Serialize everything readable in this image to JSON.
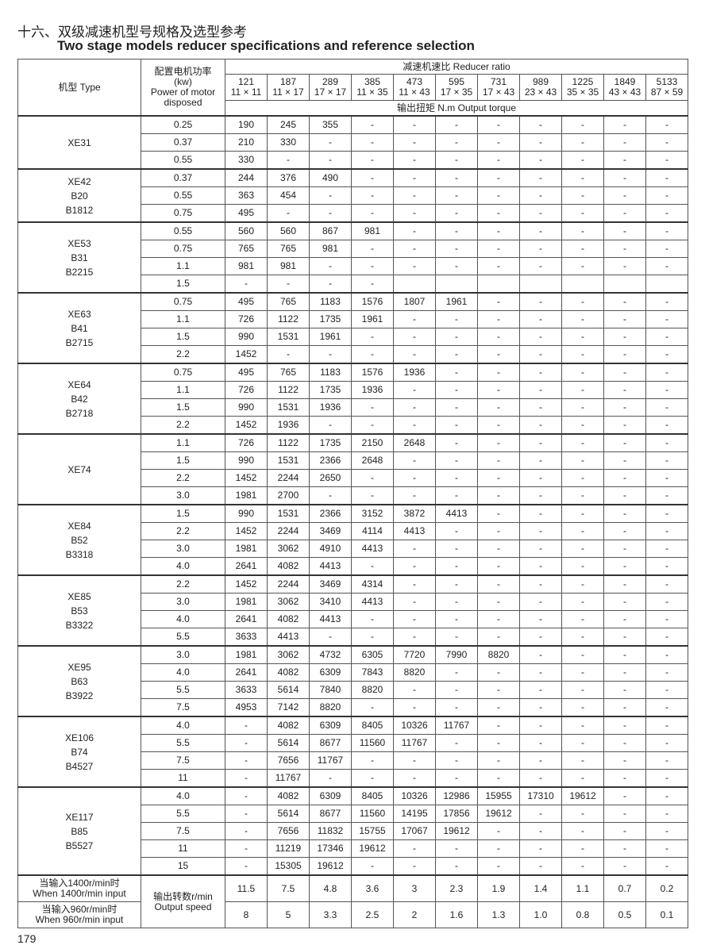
{
  "title_cn": "十六、双级减速机型号规格及选型参考",
  "title_en": "Two stage models reducer specifications and reference selection",
  "header": {
    "type": "机型 Type",
    "power": [
      "配置电机功率",
      "(kw)",
      "Power of motor",
      "disposed"
    ],
    "ratio_title": "减速机速比 Reducer ratio",
    "ratios": [
      [
        "121",
        "11 × 11"
      ],
      [
        "187",
        "11 × 17"
      ],
      [
        "289",
        "17 × 17"
      ],
      [
        "385",
        "11 × 35"
      ],
      [
        "473",
        "11 × 43"
      ],
      [
        "595",
        "17 × 35"
      ],
      [
        "731",
        "17 × 43"
      ],
      [
        "989",
        "23 × 43"
      ],
      [
        "1225",
        "35 × 35"
      ],
      [
        "1849",
        "43 × 43"
      ],
      [
        "5133",
        "87 × 59"
      ]
    ],
    "torque": "输出扭矩 N.m Output torque"
  },
  "groups": [
    {
      "models": [
        "XE31"
      ],
      "rows": [
        [
          "0.25",
          [
            "190",
            "245",
            "355",
            "-",
            "-",
            "-",
            "-",
            "-",
            "-",
            "-",
            "-"
          ]
        ],
        [
          "0.37",
          [
            "210",
            "330",
            "-",
            "-",
            "-",
            "-",
            "-",
            "-",
            "-",
            "-",
            "-"
          ]
        ],
        [
          "0.55",
          [
            "330",
            "-",
            "-",
            "-",
            "-",
            "-",
            "-",
            "-",
            "-",
            "-",
            "-"
          ]
        ]
      ]
    },
    {
      "models": [
        "XE42",
        "B20",
        "B1812"
      ],
      "rows": [
        [
          "0.37",
          [
            "244",
            "376",
            "490",
            "-",
            "-",
            "-",
            "-",
            "-",
            "-",
            "-",
            "-"
          ]
        ],
        [
          "0.55",
          [
            "363",
            "454",
            "-",
            "-",
            "-",
            "-",
            "-",
            "-",
            "-",
            "-",
            "-"
          ]
        ],
        [
          "0.75",
          [
            "495",
            "-",
            "-",
            "-",
            "-",
            "-",
            "-",
            "-",
            "-",
            "-",
            "-"
          ]
        ]
      ]
    },
    {
      "models": [
        "XE53",
        "B31",
        "B2215"
      ],
      "rows": [
        [
          "0.55",
          [
            "560",
            "560",
            "867",
            "981",
            "-",
            "-",
            "-",
            "-",
            "-",
            "-",
            "-"
          ]
        ],
        [
          "0.75",
          [
            "765",
            "765",
            "981",
            "-",
            "-",
            "-",
            "-",
            "-",
            "-",
            "-",
            "-"
          ]
        ],
        [
          "1.1",
          [
            "981",
            "981",
            "-",
            "-",
            "-",
            "-",
            "-",
            "-",
            "-",
            "-",
            "-"
          ]
        ],
        [
          "1.5",
          [
            "-",
            "-",
            "-",
            "-",
            "",
            "",
            "",
            "",
            "",
            "",
            ""
          ]
        ]
      ]
    },
    {
      "models": [
        "XE63",
        "B41",
        "B2715"
      ],
      "rows": [
        [
          "0.75",
          [
            "495",
            "765",
            "1183",
            "1576",
            "1807",
            "1961",
            "-",
            "-",
            "-",
            "-",
            "-"
          ]
        ],
        [
          "1.1",
          [
            "726",
            "1122",
            "1735",
            "1961",
            "-",
            "-",
            "-",
            "-",
            "-",
            "-",
            "-"
          ]
        ],
        [
          "1.5",
          [
            "990",
            "1531",
            "1961",
            "-",
            "-",
            "-",
            "-",
            "-",
            "-",
            "-",
            "-"
          ]
        ],
        [
          "2.2",
          [
            "1452",
            "-",
            "-",
            "-",
            "-",
            "-",
            "-",
            "-",
            "-",
            "-",
            "-"
          ]
        ]
      ]
    },
    {
      "models": [
        "XE64",
        "B42",
        "B2718"
      ],
      "rows": [
        [
          "0.75",
          [
            "495",
            "765",
            "1183",
            "1576",
            "1936",
            "-",
            "-",
            "-",
            "-",
            "-",
            "-"
          ]
        ],
        [
          "1.1",
          [
            "726",
            "1122",
            "1735",
            "1936",
            "-",
            "-",
            "-",
            "-",
            "-",
            "-",
            "-"
          ]
        ],
        [
          "1.5",
          [
            "990",
            "1531",
            "1936",
            "-",
            "-",
            "-",
            "-",
            "-",
            "-",
            "-",
            "-"
          ]
        ],
        [
          "2.2",
          [
            "1452",
            "1936",
            "-",
            "-",
            "-",
            "-",
            "-",
            "-",
            "-",
            "-",
            "-"
          ]
        ]
      ]
    },
    {
      "models": [
        "XE74"
      ],
      "rows": [
        [
          "1.1",
          [
            "726",
            "1122",
            "1735",
            "2150",
            "2648",
            "-",
            "-",
            "-",
            "-",
            "-",
            "-"
          ]
        ],
        [
          "1.5",
          [
            "990",
            "1531",
            "2366",
            "2648",
            "-",
            "-",
            "-",
            "-",
            "-",
            "-",
            "-"
          ]
        ],
        [
          "2.2",
          [
            "1452",
            "2244",
            "2650",
            "-",
            "-",
            "-",
            "-",
            "-",
            "-",
            "-",
            "-"
          ]
        ],
        [
          "3.0",
          [
            "1981",
            "2700",
            "-",
            "-",
            "-",
            "-",
            "-",
            "-",
            "-",
            "-",
            "-"
          ]
        ]
      ]
    },
    {
      "models": [
        "XE84",
        "B52",
        "B3318"
      ],
      "rows": [
        [
          "1.5",
          [
            "990",
            "1531",
            "2366",
            "3152",
            "3872",
            "4413",
            "-",
            "-",
            "-",
            "-",
            "-"
          ]
        ],
        [
          "2.2",
          [
            "1452",
            "2244",
            "3469",
            "4114",
            "4413",
            "-",
            "-",
            "-",
            "-",
            "-",
            "-"
          ]
        ],
        [
          "3.0",
          [
            "1981",
            "3062",
            "4910",
            "4413",
            "-",
            "-",
            "-",
            "-",
            "-",
            "-",
            "-"
          ]
        ],
        [
          "4.0",
          [
            "2641",
            "4082",
            "4413",
            "-",
            "-",
            "-",
            "-",
            "-",
            "-",
            "-",
            "-"
          ]
        ]
      ]
    },
    {
      "models": [
        "XE85",
        "B53",
        "B3322"
      ],
      "rows": [
        [
          "2.2",
          [
            "1452",
            "2244",
            "3469",
            "4314",
            "-",
            "-",
            "-",
            "-",
            "-",
            "-",
            "-"
          ]
        ],
        [
          "3.0",
          [
            "1981",
            "3062",
            "3410",
            "4413",
            "-",
            "-",
            "-",
            "-",
            "-",
            "-",
            "-"
          ]
        ],
        [
          "4.0",
          [
            "2641",
            "4082",
            "4413",
            "-",
            "-",
            "-",
            "-",
            "-",
            "-",
            "-",
            "-"
          ]
        ],
        [
          "5.5",
          [
            "3633",
            "4413",
            "-",
            "-",
            "-",
            "-",
            "-",
            "-",
            "-",
            "-",
            "-"
          ]
        ]
      ]
    },
    {
      "models": [
        "XE95",
        "B63",
        "B3922"
      ],
      "rows": [
        [
          "3.0",
          [
            "1981",
            "3062",
            "4732",
            "6305",
            "7720",
            "7990",
            "8820",
            "-",
            "-",
            "-",
            "-"
          ]
        ],
        [
          "4.0",
          [
            "2641",
            "4082",
            "6309",
            "7843",
            "8820",
            "-",
            "-",
            "-",
            "-",
            "-",
            "-"
          ]
        ],
        [
          "5.5",
          [
            "3633",
            "5614",
            "7840",
            "8820",
            "-",
            "-",
            "-",
            "-",
            "-",
            "-",
            "-"
          ]
        ],
        [
          "7.5",
          [
            "4953",
            "7142",
            "8820",
            "-",
            "-",
            "-",
            "-",
            "-",
            "-",
            "-",
            "-"
          ]
        ]
      ]
    },
    {
      "models": [
        "XE106",
        "B74",
        "B4527"
      ],
      "rows": [
        [
          "4.0",
          [
            "-",
            "4082",
            "6309",
            "8405",
            "10326",
            "11767",
            "-",
            "-",
            "-",
            "-",
            "-"
          ]
        ],
        [
          "5.5",
          [
            "-",
            "5614",
            "8677",
            "11560",
            "11767",
            "-",
            "-",
            "-",
            "-",
            "-",
            "-"
          ]
        ],
        [
          "7.5",
          [
            "-",
            "7656",
            "11767",
            "-",
            "-",
            "-",
            "-",
            "-",
            "-",
            "-",
            "-"
          ]
        ],
        [
          "11",
          [
            "-",
            "11767",
            "-",
            "-",
            "-",
            "-",
            "-",
            "-",
            "-",
            "-",
            "-"
          ]
        ]
      ]
    },
    {
      "models": [
        "XE117",
        "B85",
        "B5527"
      ],
      "rows": [
        [
          "4.0",
          [
            "-",
            "4082",
            "6309",
            "8405",
            "10326",
            "12986",
            "15955",
            "17310",
            "19612",
            "-",
            "-"
          ]
        ],
        [
          "5.5",
          [
            "-",
            "5614",
            "8677",
            "11560",
            "14195",
            "17856",
            "19612",
            "-",
            "-",
            "-",
            "-"
          ]
        ],
        [
          "7.5",
          [
            "-",
            "7656",
            "11832",
            "15755",
            "17067",
            "19612",
            "-",
            "-",
            "-",
            "-",
            "-"
          ]
        ],
        [
          "11",
          [
            "-",
            "11219",
            "17346",
            "19612",
            "-",
            "-",
            "-",
            "-",
            "-",
            "-",
            "-"
          ]
        ],
        [
          "15",
          [
            "-",
            "15305",
            "19612",
            "-",
            "-",
            "-",
            "-",
            "-",
            "-",
            "-",
            "-"
          ]
        ]
      ]
    }
  ],
  "speed": {
    "label": [
      "输出转数r/min",
      "Output speed"
    ],
    "rows": [
      {
        "cond": [
          "当输入1400r/min时",
          "When 1400r/min input"
        ],
        "values": [
          "11.5",
          "7.5",
          "4.8",
          "3.6",
          "3",
          "2.3",
          "1.9",
          "1.4",
          "1.1",
          "0.7",
          "0.2"
        ]
      },
      {
        "cond": [
          "当输入960r/min时",
          "When 960r/min input"
        ],
        "values": [
          "8",
          "5",
          "3.3",
          "2.5",
          "2",
          "1.6",
          "1.3",
          "1.0",
          "0.8",
          "0.5",
          "0.1"
        ]
      }
    ]
  },
  "page_number": "179"
}
